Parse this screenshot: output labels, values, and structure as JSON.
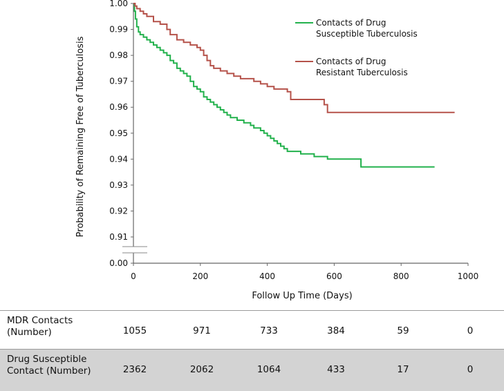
{
  "chart_data": {
    "type": "line",
    "title": "",
    "xlabel": "Follow Up Time  (Days)",
    "ylabel": "Probability of Remaining Free of Tuberculosis",
    "xlim": [
      0,
      1000
    ],
    "ylim": [
      0.9,
      1.0
    ],
    "axis_break": true,
    "x_ticks": [
      "0",
      "200",
      "400",
      "600",
      "800",
      "1000"
    ],
    "y_ticks": [
      "0.00",
      "0.91",
      "0.92",
      "0.93",
      "0.94",
      "0.95",
      "0.96",
      "0.97",
      "0.98",
      "0.99",
      "1.00"
    ],
    "legend_position": "top-right",
    "series": [
      {
        "name": "Contacts of Drug Susceptible Tuberculosis",
        "color": "#22b14c",
        "x": [
          0,
          3,
          6,
          10,
          15,
          20,
          30,
          40,
          50,
          60,
          70,
          80,
          90,
          100,
          110,
          120,
          130,
          140,
          150,
          160,
          170,
          180,
          190,
          200,
          210,
          220,
          230,
          240,
          250,
          260,
          270,
          280,
          290,
          300,
          310,
          320,
          330,
          340,
          350,
          360,
          370,
          380,
          390,
          400,
          410,
          420,
          430,
          440,
          450,
          460,
          470,
          480,
          500,
          520,
          540,
          560,
          580,
          600,
          620,
          640,
          660,
          680,
          700,
          750,
          800,
          850,
          900
        ],
        "y": [
          1.0,
          0.997,
          0.994,
          0.991,
          0.989,
          0.988,
          0.987,
          0.986,
          0.985,
          0.984,
          0.983,
          0.982,
          0.981,
          0.98,
          0.978,
          0.977,
          0.975,
          0.974,
          0.973,
          0.972,
          0.97,
          0.968,
          0.967,
          0.966,
          0.964,
          0.963,
          0.962,
          0.961,
          0.96,
          0.959,
          0.958,
          0.957,
          0.956,
          0.956,
          0.955,
          0.955,
          0.954,
          0.954,
          0.953,
          0.952,
          0.952,
          0.951,
          0.95,
          0.949,
          0.948,
          0.947,
          0.946,
          0.945,
          0.944,
          0.943,
          0.943,
          0.943,
          0.942,
          0.942,
          0.941,
          0.941,
          0.94,
          0.94,
          0.94,
          0.94,
          0.94,
          0.937,
          0.937,
          0.937,
          0.937,
          0.937,
          0.937
        ]
      },
      {
        "name": "Contacts of Drug Resistant Tuberculosis",
        "color": "#b5524a",
        "x": [
          0,
          5,
          10,
          20,
          30,
          40,
          60,
          80,
          100,
          110,
          130,
          150,
          170,
          190,
          200,
          210,
          220,
          230,
          240,
          260,
          280,
          300,
          320,
          340,
          360,
          380,
          400,
          420,
          440,
          460,
          470,
          480,
          500,
          520,
          540,
          560,
          570,
          580,
          600,
          650,
          700,
          750,
          800,
          850,
          900,
          950,
          960
        ],
        "y": [
          1.0,
          0.999,
          0.998,
          0.997,
          0.996,
          0.995,
          0.993,
          0.992,
          0.99,
          0.988,
          0.986,
          0.985,
          0.984,
          0.983,
          0.982,
          0.98,
          0.978,
          0.976,
          0.975,
          0.974,
          0.973,
          0.972,
          0.971,
          0.971,
          0.97,
          0.969,
          0.968,
          0.967,
          0.967,
          0.966,
          0.963,
          0.963,
          0.963,
          0.963,
          0.963,
          0.963,
          0.961,
          0.958,
          0.958,
          0.958,
          0.958,
          0.958,
          0.958,
          0.958,
          0.958,
          0.958,
          0.958
        ]
      }
    ]
  },
  "risk_table": {
    "columns": [
      "0",
      "200",
      "400",
      "600",
      "800",
      "1000"
    ],
    "rows": [
      {
        "label": "MDR Contacts (Number)",
        "values": [
          "1055",
          "971",
          "733",
          "384",
          "59",
          "0"
        ]
      },
      {
        "label": "Drug Susceptible Contact (Number)",
        "values": [
          "2362",
          "2062",
          "1064",
          "433",
          "17",
          "0"
        ]
      }
    ]
  }
}
